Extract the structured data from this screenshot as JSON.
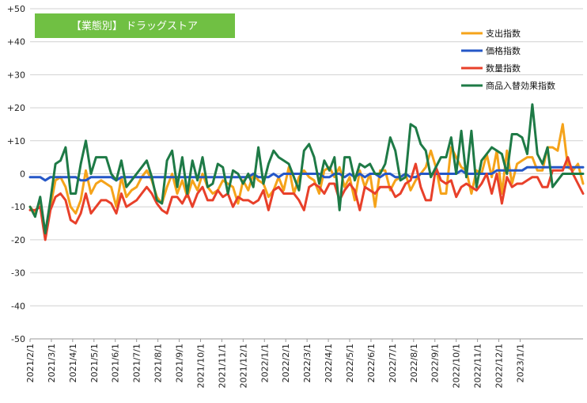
{
  "chart_data": {
    "type": "line",
    "title": "【業態別】 ドラッグストア",
    "title_bg": "#70c043",
    "ylim": [
      -50,
      50
    ],
    "yticks": [
      "+50",
      "+40",
      "+30",
      "+20",
      "+10",
      "0",
      "-10",
      "-20",
      "-30",
      "-40",
      "-50"
    ],
    "ytick_values": [
      50,
      40,
      30,
      20,
      10,
      0,
      -10,
      -20,
      -30,
      -40,
      -50
    ],
    "grid": "horizontal",
    "legend_position": "top-right",
    "x_labels": [
      "2021/2/1",
      "2021/3/1",
      "2021/4/1",
      "2021/5/1",
      "2021/6/1",
      "2021/7/1",
      "2021/8/1",
      "2021/9/1",
      "2021/10/1",
      "2021/11/1",
      "2021/12/1",
      "2022/1/1",
      "2022/2/1",
      "2022/3/1",
      "2022/4/1",
      "2022/5/1",
      "2022/6/1",
      "2022/7/1",
      "2022/8/1",
      "2022/9/1",
      "2022/10/1",
      "2022/11/1",
      "2022/12/1",
      "2023/1/1"
    ],
    "weeks_per_label": 4.2,
    "series": [
      {
        "name": "支出指数",
        "color": "#f5a31a",
        "values": [
          -10,
          -12,
          -8,
          -18,
          -10,
          -2,
          -1,
          -4,
          -10,
          -12,
          -8,
          1,
          -6,
          -3,
          -2,
          -3,
          -4,
          -10,
          -1,
          -7,
          -5,
          -4,
          -1,
          1,
          -2,
          -7,
          -9,
          -4,
          0,
          -6,
          -2,
          -7,
          -2,
          -5,
          0,
          -4,
          -6,
          -5,
          -2,
          -3,
          -4,
          -9,
          -2,
          -5,
          0,
          -2,
          -3,
          -7,
          -5,
          -1,
          -5,
          2,
          -6,
          -1,
          1,
          -1,
          -2,
          -6,
          1,
          2,
          -1,
          2,
          -4,
          -1,
          -8,
          1,
          -4,
          0,
          -10,
          1,
          1,
          -5,
          -2,
          -1,
          0,
          -5,
          -2,
          0,
          2,
          7,
          2,
          -6,
          -6,
          8,
          5,
          2,
          1,
          -6,
          1,
          0,
          6,
          -1,
          7,
          -6,
          7,
          -3,
          3,
          4,
          5,
          5,
          1,
          1,
          8,
          8,
          7,
          15,
          2,
          1,
          3,
          -3
        ]
      },
      {
        "name": "価格指数",
        "color": "#2557c7",
        "values": [
          -1,
          -1,
          -1,
          -2,
          -1,
          -1,
          -1,
          -1,
          -1,
          -1,
          -2,
          -2,
          -1,
          -1,
          -1,
          -1,
          -1,
          -2,
          -1,
          -1,
          -1,
          -1,
          -1,
          -1,
          -1,
          -1,
          -1,
          -1,
          -1,
          -1,
          -1,
          -1,
          -1,
          -1,
          -1,
          -1,
          -1,
          -1,
          -1,
          -1,
          -1,
          -1,
          -1,
          -1,
          0,
          -1,
          -1,
          -1,
          0,
          -1,
          0,
          0,
          0,
          0,
          0,
          0,
          0,
          0,
          -1,
          -1,
          0,
          0,
          -1,
          0,
          -1,
          0,
          -1,
          0,
          0,
          -1,
          0,
          0,
          -1,
          -1,
          0,
          -1,
          -1,
          0,
          0,
          0,
          0,
          0,
          0,
          0,
          0,
          1,
          0,
          0,
          0,
          0,
          0,
          0,
          1,
          1,
          1,
          1,
          1,
          1,
          2,
          2,
          2,
          2,
          2,
          2,
          2,
          2,
          2,
          2,
          2,
          2
        ]
      },
      {
        "name": "数量指数",
        "color": "#e8402a",
        "values": [
          -11,
          -11,
          -10,
          -20,
          -11,
          -7,
          -6,
          -8,
          -14,
          -15,
          -12,
          -6,
          -12,
          -10,
          -8,
          -8,
          -9,
          -12,
          -6,
          -10,
          -9,
          -8,
          -6,
          -4,
          -6,
          -9,
          -11,
          -12,
          -7,
          -7,
          -9,
          -6,
          -10,
          -6,
          -4,
          -8,
          -8,
          -5,
          -7,
          -6,
          -10,
          -7,
          -8,
          -8,
          -9,
          -8,
          -5,
          -11,
          -5,
          -4,
          -6,
          -6,
          -6,
          -8,
          -11,
          -4,
          -3,
          -4,
          -6,
          -3,
          -3,
          -8,
          -5,
          -3,
          -5,
          -11,
          -4,
          -5,
          -6,
          -4,
          -4,
          -4,
          -7,
          -6,
          -3,
          -2,
          3,
          -4,
          -8,
          -8,
          2,
          -2,
          -3,
          -2,
          -7,
          -4,
          -3,
          -4,
          -5,
          -3,
          0,
          -6,
          0,
          -9,
          -1,
          -4,
          -3,
          -3,
          -2,
          -1,
          -1,
          -4,
          -4,
          1,
          1,
          1,
          5,
          0,
          -3,
          -6
        ]
      },
      {
        "name": "商品入替効果指数",
        "color": "#1e7a46",
        "values": [
          -10,
          -13,
          -7,
          -18,
          -8,
          3,
          4,
          8,
          -6,
          -6,
          3,
          10,
          0,
          5,
          5,
          5,
          0,
          -2,
          4,
          -4,
          -2,
          0,
          2,
          4,
          -1,
          -8,
          -9,
          4,
          7,
          -4,
          5,
          -6,
          4,
          -2,
          5,
          -4,
          -3,
          3,
          2,
          -6,
          1,
          0,
          -3,
          0,
          -4,
          8,
          -3,
          3,
          7,
          5,
          4,
          3,
          -1,
          -5,
          7,
          9,
          5,
          -3,
          4,
          1,
          5,
          -11,
          5,
          5,
          -2,
          3,
          2,
          3,
          0,
          0,
          3,
          11,
          7,
          -2,
          -1,
          15,
          14,
          9,
          7,
          -1,
          2,
          5,
          5,
          11,
          0,
          13,
          -1,
          13,
          -4,
          4,
          6,
          8,
          7,
          6,
          0,
          12,
          12,
          11,
          6,
          21,
          6,
          3,
          8,
          -4,
          -2,
          0,
          0,
          0,
          0,
          0
        ]
      }
    ]
  }
}
